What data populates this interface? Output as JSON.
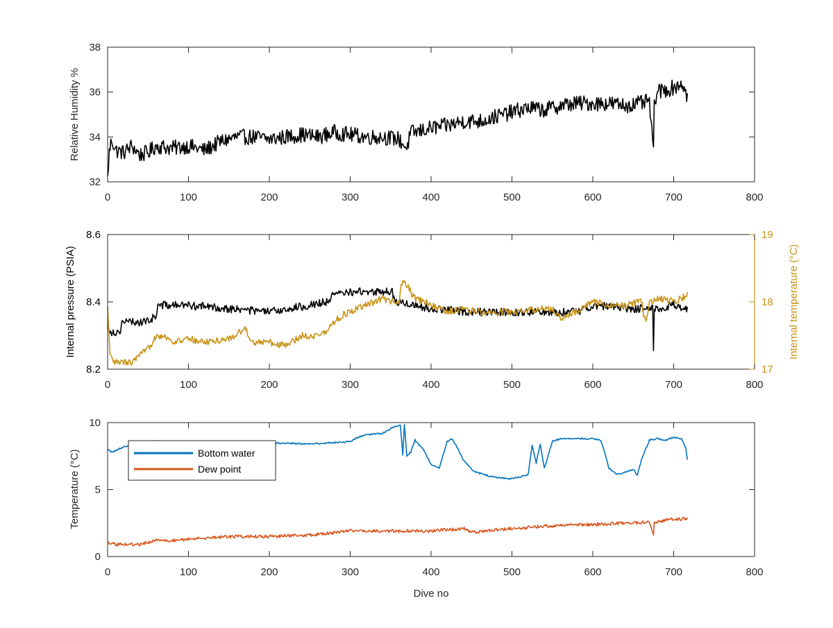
{
  "colors": {
    "axis": "#262626",
    "black_series": "#000000",
    "internal_temp": "#c89214",
    "bottom_water": "#0072bd",
    "dew_point": "#d95319"
  },
  "chart_data": [
    {
      "type": "line",
      "xlabel": "",
      "ylabel": "Relative Humidity %",
      "xlim": [
        0,
        800
      ],
      "ylim": [
        32,
        38
      ],
      "xticks": [
        "0",
        "100",
        "200",
        "300",
        "400",
        "500",
        "600",
        "700",
        "800"
      ],
      "yticks": [
        "32",
        "34",
        "36",
        "38"
      ],
      "grid": false,
      "series": [
        {
          "name": "",
          "color": "#000000",
          "noise": 0.35,
          "x": [
            0,
            2,
            5,
            10,
            20,
            30,
            40,
            50,
            60,
            80,
            100,
            120,
            140,
            160,
            180,
            200,
            220,
            240,
            260,
            280,
            300,
            320,
            340,
            360,
            370,
            375,
            380,
            400,
            420,
            440,
            460,
            480,
            500,
            520,
            540,
            560,
            580,
            600,
            620,
            640,
            660,
            670,
            675,
            676,
            677,
            680,
            700,
            710,
            717
          ],
          "y": [
            32.1,
            33.3,
            33.9,
            33.4,
            33.3,
            33.6,
            33.2,
            33.3,
            33.6,
            33.5,
            33.6,
            33.4,
            33.8,
            34.0,
            34.0,
            33.9,
            34.0,
            34.1,
            34.0,
            34.2,
            34.1,
            34.0,
            34.0,
            33.9,
            33.5,
            34.2,
            34.2,
            34.4,
            34.5,
            34.7,
            34.7,
            34.9,
            35.1,
            35.3,
            35.2,
            35.4,
            35.5,
            35.5,
            35.5,
            35.4,
            35.5,
            35.6,
            33.2,
            35.5,
            35.7,
            36.0,
            36.2,
            36.4,
            35.8
          ]
        }
      ]
    },
    {
      "type": "line",
      "xlabel": "",
      "ylabel": "Internal pressure (PSIA)",
      "ylabel_right": "Internal temperature (°C)",
      "xlim": [
        0,
        800
      ],
      "ylim": [
        8.2,
        8.6
      ],
      "ylim_right": [
        17,
        19
      ],
      "xticks": [
        "0",
        "100",
        "200",
        "300",
        "400",
        "500",
        "600",
        "700",
        "800"
      ],
      "yticks": [
        "8.2",
        "8.4",
        "8.6"
      ],
      "yticks_right": [
        "17",
        "18",
        "19"
      ],
      "grid": false,
      "series": [
        {
          "name": "",
          "axis": "left",
          "color": "#000000",
          "noise": 0.012,
          "x": [
            0,
            5,
            15,
            18,
            30,
            45,
            55,
            60,
            62,
            100,
            150,
            200,
            250,
            270,
            280,
            300,
            320,
            340,
            352,
            355,
            360,
            380,
            400,
            450,
            500,
            550,
            560,
            580,
            600,
            650,
            660,
            670,
            674,
            675,
            676,
            680,
            700,
            717
          ],
          "y": [
            8.33,
            8.31,
            8.31,
            8.34,
            8.34,
            8.34,
            8.35,
            8.36,
            8.39,
            8.39,
            8.38,
            8.37,
            8.39,
            8.4,
            8.42,
            8.43,
            8.43,
            8.43,
            8.43,
            8.4,
            8.4,
            8.39,
            8.38,
            8.37,
            8.37,
            8.37,
            8.37,
            8.37,
            8.39,
            8.38,
            8.38,
            8.38,
            8.38,
            8.25,
            8.38,
            8.38,
            8.39,
            8.38
          ]
        },
        {
          "name": "",
          "axis": "right",
          "color": "#c89214",
          "noise": 0.05,
          "x": [
            0,
            3,
            8,
            15,
            30,
            50,
            60,
            70,
            80,
            100,
            120,
            150,
            170,
            180,
            200,
            220,
            240,
            260,
            270,
            280,
            290,
            300,
            320,
            340,
            350,
            360,
            365,
            370,
            380,
            390,
            400,
            420,
            440,
            460,
            500,
            540,
            550,
            560,
            570,
            580,
            600,
            620,
            640,
            660,
            665,
            670,
            680,
            700,
            717
          ],
          "y": [
            17.9,
            17.2,
            17.1,
            17.1,
            17.1,
            17.3,
            17.5,
            17.5,
            17.4,
            17.45,
            17.4,
            17.45,
            17.6,
            17.4,
            17.4,
            17.35,
            17.5,
            17.5,
            17.55,
            17.7,
            17.8,
            17.85,
            17.95,
            18.05,
            18.0,
            18.0,
            18.35,
            18.25,
            18.05,
            18.0,
            17.95,
            17.85,
            17.9,
            17.85,
            17.85,
            17.9,
            17.9,
            17.75,
            17.8,
            17.85,
            18.0,
            17.95,
            17.95,
            18.0,
            17.7,
            18.0,
            18.05,
            18.0,
            18.1
          ]
        }
      ]
    },
    {
      "type": "line",
      "xlabel": "Dive no",
      "ylabel": "Temperature (°C)",
      "xlim": [
        0,
        800
      ],
      "ylim": [
        0,
        10
      ],
      "xticks": [
        "0",
        "100",
        "200",
        "300",
        "400",
        "500",
        "600",
        "700",
        "800"
      ],
      "yticks": [
        "0",
        "5",
        "10"
      ],
      "grid": false,
      "legend": "top-left",
      "series": [
        {
          "name": "Bottom water",
          "color": "#0072bd",
          "noise": 0.06,
          "x": [
            0,
            5,
            10,
            20,
            30,
            50,
            60,
            80,
            100,
            150,
            200,
            250,
            280,
            300,
            310,
            320,
            340,
            355,
            362,
            365,
            367,
            370,
            375,
            380,
            390,
            400,
            410,
            420,
            425,
            430,
            440,
            450,
            460,
            480,
            500,
            520,
            525,
            530,
            535,
            540,
            550,
            560,
            580,
            600,
            610,
            620,
            630,
            640,
            650,
            655,
            660,
            670,
            680,
            690,
            700,
            710,
            715,
            717
          ],
          "y": [
            8.0,
            7.8,
            7.9,
            8.2,
            8.3,
            8.5,
            8.6,
            8.6,
            8.5,
            8.5,
            8.5,
            8.4,
            8.5,
            8.6,
            8.9,
            9.1,
            9.2,
            9.7,
            9.8,
            7.6,
            9.9,
            7.5,
            7.8,
            8.7,
            8.0,
            6.9,
            6.6,
            8.6,
            8.8,
            8.4,
            7.2,
            6.5,
            6.2,
            5.9,
            5.8,
            6.1,
            8.3,
            7.0,
            8.4,
            6.6,
            8.6,
            8.8,
            8.8,
            8.8,
            8.7,
            6.6,
            6.1,
            6.3,
            6.5,
            6.1,
            7.2,
            8.7,
            8.8,
            8.7,
            8.9,
            8.8,
            8.1,
            7.2
          ]
        },
        {
          "name": "Dew point",
          "color": "#d95319",
          "noise": 0.12,
          "x": [
            0,
            10,
            20,
            40,
            60,
            80,
            100,
            150,
            200,
            250,
            300,
            350,
            400,
            440,
            450,
            500,
            550,
            600,
            650,
            670,
            675,
            676,
            680,
            700,
            717
          ],
          "y": [
            1.0,
            0.9,
            0.9,
            0.9,
            1.2,
            1.2,
            1.3,
            1.5,
            1.5,
            1.6,
            1.9,
            1.9,
            1.9,
            2.1,
            1.8,
            2.1,
            2.3,
            2.4,
            2.5,
            2.6,
            1.7,
            2.6,
            2.6,
            2.8,
            2.8
          ]
        }
      ]
    }
  ]
}
